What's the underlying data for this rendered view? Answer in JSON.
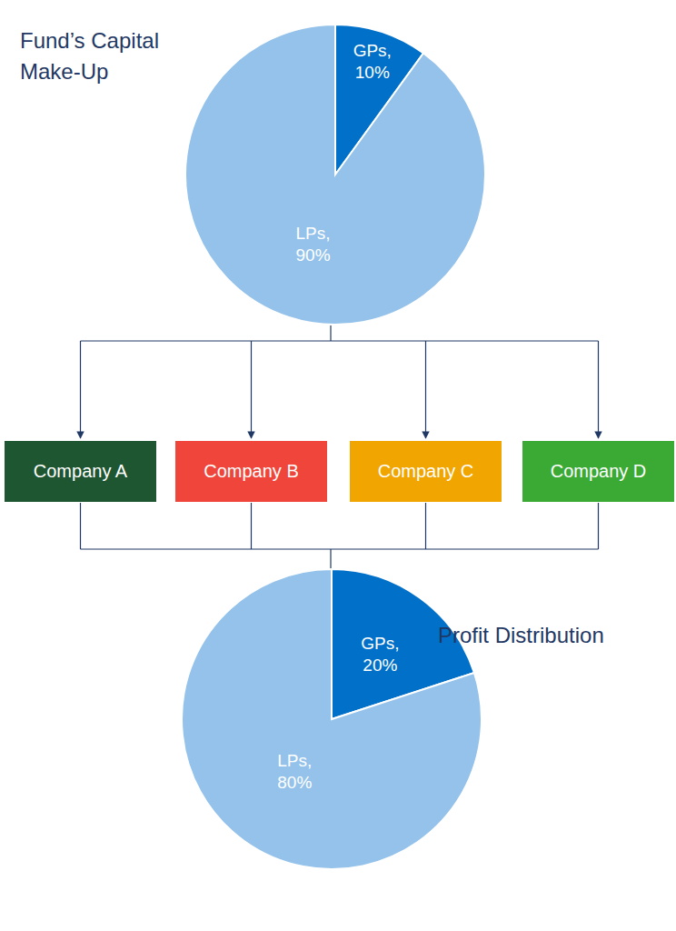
{
  "chart_data": [
    {
      "type": "pie",
      "title": "Fund’s Capital Make-Up",
      "categories": [
        "GPs,",
        "LPs,"
      ],
      "values": [
        10,
        90
      ],
      "value_labels": [
        "10%",
        "90%"
      ],
      "colors": [
        "#0070c9",
        "#94c2ea"
      ],
      "data_labels": true
    },
    {
      "type": "pie",
      "title": "Profit Distribution",
      "categories": [
        "GPs,",
        "LPs,"
      ],
      "values": [
        20,
        80
      ],
      "value_labels": [
        "20%",
        "80%"
      ],
      "colors": [
        "#0070c9",
        "#94c2ea"
      ],
      "data_labels": true
    }
  ],
  "nodes": [
    {
      "label": "Company A",
      "color": "#1e5631"
    },
    {
      "label": "Company B",
      "color": "#f0453a"
    },
    {
      "label": "Company C",
      "color": "#f0a500"
    },
    {
      "label": "Company D",
      "color": "#3aaa35"
    }
  ]
}
